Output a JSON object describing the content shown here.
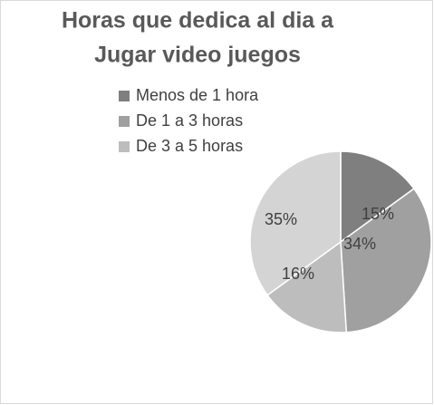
{
  "chart_data": {
    "type": "pie",
    "title": [
      "Horas que dedica al dia a",
      "Jugar video juegos"
    ],
    "categories": [
      "Menos de 1 hora",
      "De 1 a 3 horas",
      "De 3 a 5 horas",
      null
    ],
    "values": [
      15,
      34,
      16,
      35
    ],
    "value_labels": [
      "15%",
      "34%",
      "16%",
      "35%"
    ],
    "colors": [
      "#7f7f7f",
      "#a0a0a0",
      "#bdbdbd",
      "#d4d4d4"
    ],
    "legend": "top"
  }
}
